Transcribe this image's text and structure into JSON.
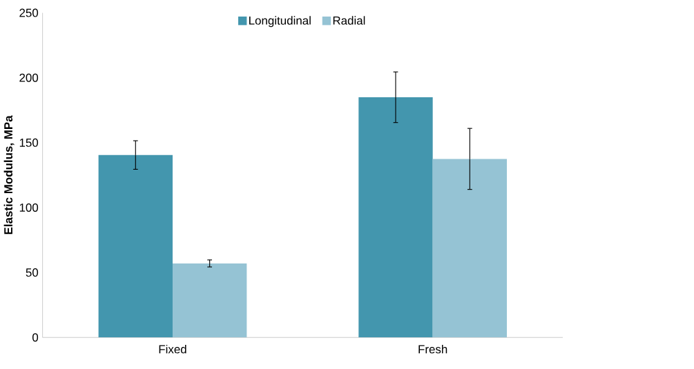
{
  "chart_data": {
    "type": "bar",
    "ylabel": "Elastic Modulus, MPa",
    "categories": [
      "Fixed",
      "Fresh"
    ],
    "series": [
      {
        "name": "Longitudinal",
        "color": "#4396ae",
        "values": [
          140.5,
          185
        ],
        "errors": [
          11,
          19.5
        ]
      },
      {
        "name": "Radial",
        "color": "#95c3d4",
        "values": [
          57,
          137.5
        ],
        "errors": [
          2.7,
          23.5
        ]
      }
    ],
    "ylim": [
      0,
      250
    ],
    "yticks": [
      0,
      50,
      100,
      150,
      200,
      250
    ],
    "grid": false,
    "legend": "top"
  }
}
